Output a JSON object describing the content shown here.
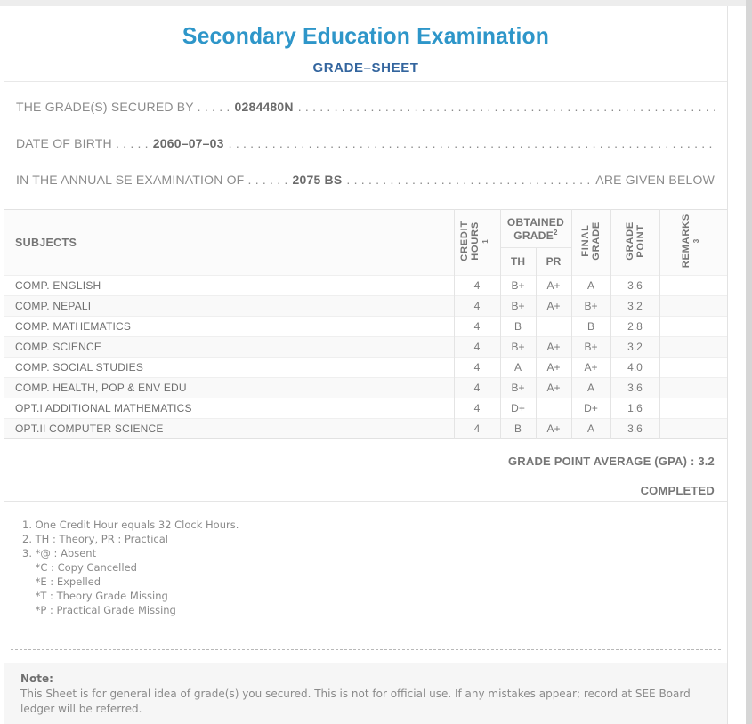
{
  "page": {
    "title": "Secondary Education Examination",
    "subtitle": "GRADE–SHEET"
  },
  "colors": {
    "title_blue": "#2e96c9",
    "subtitle_blue": "#33659e",
    "body_gray": "#8b8b8b"
  },
  "info": {
    "filler_dots": ". . . . . . . . . . . . . . . . . . . . . . . . . . . . . . . . . . . . . . . . . . . . . . . . . . . . . . . . . . . . . . . . . . . . . . . . . . . . . . . . . . . . . . . . . . . .",
    "lines": [
      {
        "label": "THE GRADE(S) SECURED BY . . . . .",
        "value": "0284480N",
        "suffix": ""
      },
      {
        "label": "DATE OF BIRTH . . . . .",
        "value": "2060–07–03",
        "suffix": ""
      },
      {
        "label": "IN THE ANNUAL SE EXAMINATION OF . . . . . .",
        "value": "2075 BS",
        "suffix": "ARE GIVEN BELOW"
      }
    ]
  },
  "table": {
    "headers": {
      "subjects": "SUBJECTS",
      "credit_line1": "CREDIT",
      "credit_line2": "HOURS",
      "credit_sup": "1",
      "obtained_grade": "OBTAINED GRADE",
      "obtained_sup": "2",
      "th": "TH",
      "pr": "PR",
      "final_line1": "FINAL",
      "final_line2": "GRADE",
      "point_line1": "GRADE",
      "point_line2": "POINT",
      "remarks": "REMARKS",
      "remarks_sup": "3"
    },
    "rows": [
      {
        "subject": "COMP. ENGLISH",
        "credit": "4",
        "th": "B+",
        "pr": "A+",
        "final": "A",
        "point": "3.6",
        "remarks": ""
      },
      {
        "subject": "COMP. NEPALI",
        "credit": "4",
        "th": "B+",
        "pr": "A+",
        "final": "B+",
        "point": "3.2",
        "remarks": ""
      },
      {
        "subject": "COMP. MATHEMATICS",
        "credit": "4",
        "th": "B",
        "pr": "",
        "final": "B",
        "point": "2.8",
        "remarks": ""
      },
      {
        "subject": "COMP. SCIENCE",
        "credit": "4",
        "th": "B+",
        "pr": "A+",
        "final": "B+",
        "point": "3.2",
        "remarks": ""
      },
      {
        "subject": "COMP. SOCIAL STUDIES",
        "credit": "4",
        "th": "A",
        "pr": "A+",
        "final": "A+",
        "point": "4.0",
        "remarks": ""
      },
      {
        "subject": "COMP. HEALTH, POP & ENV EDU",
        "credit": "4",
        "th": "B+",
        "pr": "A+",
        "final": "A",
        "point": "3.6",
        "remarks": ""
      },
      {
        "subject": "OPT.I ADDITIONAL MATHEMATICS",
        "credit": "4",
        "th": "D+",
        "pr": "",
        "final": "D+",
        "point": "1.6",
        "remarks": ""
      },
      {
        "subject": "OPT.II COMPUTER SCIENCE",
        "credit": "4",
        "th": "B",
        "pr": "A+",
        "final": "A",
        "point": "3.6",
        "remarks": ""
      }
    ]
  },
  "summary": {
    "gpa_text": "GRADE POINT AVERAGE (GPA) : 3.2",
    "status": "COMPLETED"
  },
  "footnotes": [
    "1. One Credit Hour equals 32 Clock Hours.",
    "2. TH : Theory, PR : Practical",
    "3. *@ : Absent",
    "    *C : Copy Cancelled",
    "    *E : Expelled",
    "    *T : Theory Grade Missing",
    "    *P : Practical Grade Missing"
  ],
  "note": {
    "label": "Note:",
    "text": "This Sheet is for general idea of grade(s) you secured. This is not for official use. If any mistakes appear; record at SEE Board ledger will be referred."
  }
}
